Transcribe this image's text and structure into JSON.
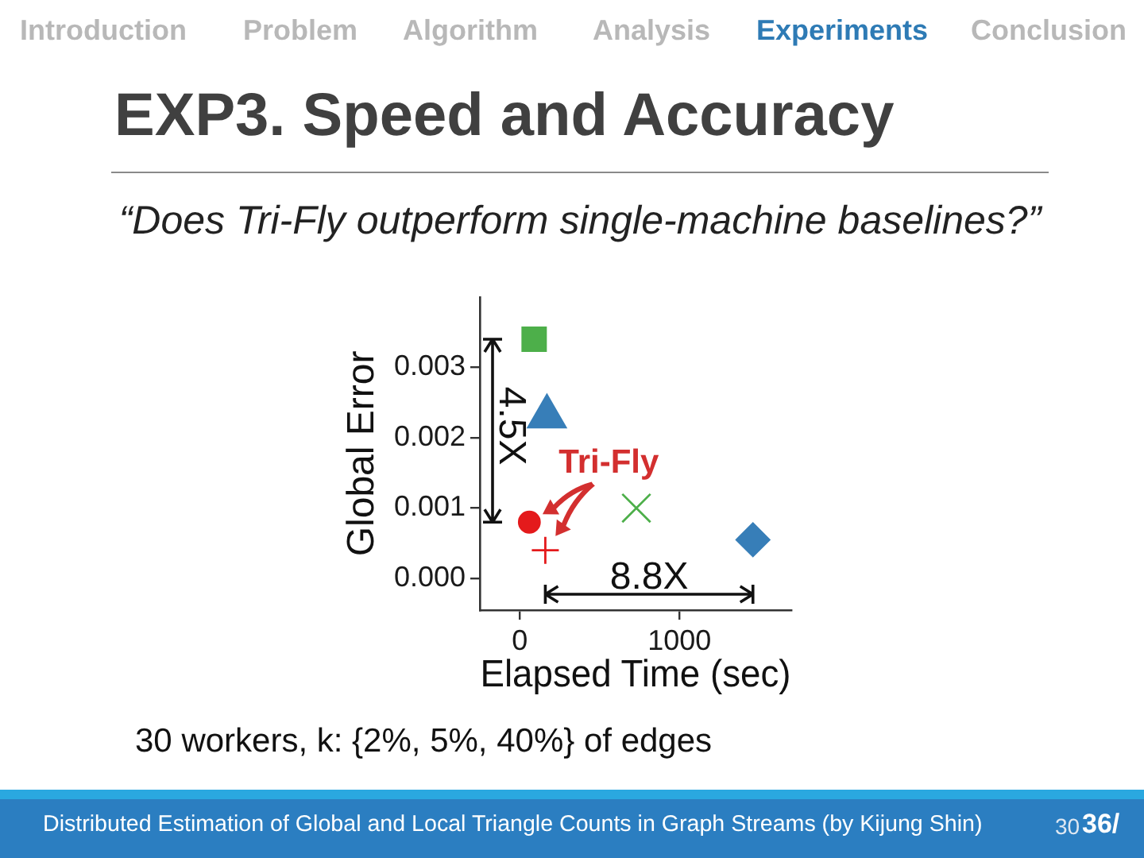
{
  "chart_data": {
    "type": "scatter",
    "title": "EXP3. Speed and Accuracy",
    "subtitle": "“Does Tri-Fly outperform single-machine baselines?”",
    "xlabel": "Elapsed Time (sec)",
    "ylabel": "Global Error",
    "series": [
      {
        "marker": "square",
        "color": "#4daf4a",
        "x": [
          90
        ],
        "values": [
          0.0034
        ]
      },
      {
        "marker": "triangle",
        "color": "#377eb8",
        "x": [
          170
        ],
        "values": [
          0.0023
        ]
      },
      {
        "marker": "circle",
        "color": "#e41a1c",
        "x": [
          60
        ],
        "values": [
          0.0008
        ]
      },
      {
        "marker": "cross",
        "color": "#e41a1c",
        "x": [
          160
        ],
        "values": [
          0.0004
        ]
      },
      {
        "marker": "x",
        "color": "#4daf4a",
        "x": [
          730
        ],
        "values": [
          0.001
        ]
      },
      {
        "marker": "diamond",
        "color": "#377eb8",
        "x": [
          1460
        ],
        "values": [
          0.00055
        ]
      }
    ],
    "xlim": [
      -250,
      1700
    ],
    "ylim": [
      -0.00045,
      0.004
    ],
    "xticks": [
      0,
      1000
    ],
    "yticks": [
      {
        "value": 0,
        "label": "0.000"
      },
      {
        "value": 0.001,
        "label": "0.001"
      },
      {
        "value": 0.002,
        "label": "0.002"
      },
      {
        "value": 0.003,
        "label": "0.003"
      }
    ],
    "annotations": [
      "Introduction",
      "Problem",
      "Algorithm",
      "Analysis",
      "Experiments",
      "Conclusion",
      "30 workers, k: {2%, 5%, 40%} of edges",
      "Distributed Estimation of Global and Local Triangle Counts in Graph Streams (by Kijung Shin)",
      "30",
      "36/",
      "4.5X",
      "8.8X",
      "Tri-Fly"
    ]
  }
}
